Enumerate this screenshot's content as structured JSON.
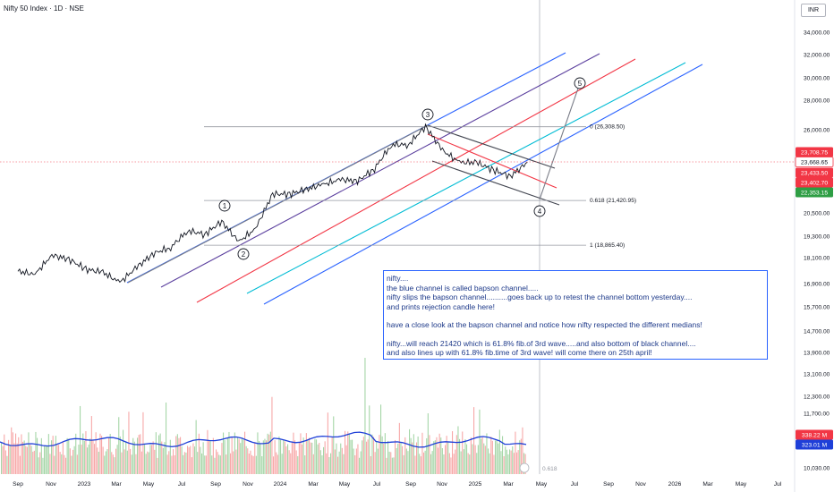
{
  "header": {
    "title": "Nifty 50 Index · 1D · NSE",
    "currency": "INR"
  },
  "colors": {
    "price": "#131722",
    "blue_channel": "#2962ff",
    "purple_channel": "#5b3f9e",
    "red_channel": "#f23645",
    "teal_channel": "#00bcd4",
    "black_channel": "#434651",
    "fib_line": "#9598a1",
    "volume_up": "#a5d6a7",
    "volume_down": "#f7a8a8",
    "volume_ma": "#1e3fd8",
    "current_price_badge": "#f23645",
    "green_badge": "#2e9e44",
    "note_border": "#2962ff",
    "note_text": "#1e3a8a"
  },
  "annotations": {
    "fib_levels": [
      "0 (26,308.50)",
      "0.618 (21,420.95)",
      "1 (18,865.40)"
    ],
    "wave_labels": [
      "1",
      "2",
      "3",
      "4",
      "5"
    ],
    "time_fib_label": "0.618"
  },
  "note": {
    "lines": [
      "nifty....",
      "the blue channel is called bapson channel.....",
      "nifty slips the bapson channel..........goes back up to retest the channel bottom yesterday....",
      "and prints rejection candle here!",
      "",
      "have a close look at the bapson channel and notice how nifty respected the different medians!",
      "",
      "nifty...will reach 21420 which is 61.8% fib.of 3rd wave.....and also bottom of black channel....",
      "and also lines up with 61.8% fib.time of 3rd wave! will come there on 25th april!"
    ]
  },
  "chart_data": {
    "type": "line",
    "title": "Nifty 50 Index · 1D · NSE",
    "x_tick_labels": [
      "Sep",
      "Nov",
      "2023",
      "Mar",
      "May",
      "Jul",
      "Sep",
      "Nov",
      "2024",
      "Mar",
      "May",
      "Jul",
      "Sep",
      "Nov",
      "2025",
      "Mar",
      "May",
      "Jul",
      "Sep",
      "Nov",
      "2026",
      "Mar",
      "May",
      "Jul"
    ],
    "y_tick_labels": [
      "34,000.00",
      "32,000.00",
      "30,000.00",
      "28,000.00",
      "26,000.00",
      "23,708.75",
      "23,668.65",
      "23,433.50",
      "23,402.70",
      "22,353.15",
      "20,500.00",
      "19,300.00",
      "18,100.00",
      "16,900.00",
      "15,700.00",
      "14,700.00",
      "13,900.00",
      "13,100.00",
      "12,300.00",
      "11,700.00",
      "338.22 M",
      "323.01 M",
      "10,030.00"
    ],
    "y_scale": "log",
    "y_ticks": [
      34000,
      32000,
      30000,
      28000,
      26000,
      20500,
      19300,
      18100,
      16900,
      15700,
      14700,
      13900,
      13100,
      12300,
      11700,
      10030
    ],
    "price_badges": [
      {
        "label": "23,708.75",
        "value": 23708.75,
        "color": "#f23645"
      },
      {
        "label": "23,668.65",
        "value": 23668.65,
        "color": "#ffffff"
      },
      {
        "label": "23,433.50",
        "value": 23433.5,
        "color": "#f23645"
      },
      {
        "label": "23,402.70",
        "value": 23402.7,
        "color": "#f23645"
      },
      {
        "label": "22,353.15",
        "value": 22353.15,
        "color": "#2e9e44"
      }
    ],
    "volume_badges": [
      {
        "label": "338.22 M",
        "color": "#f23645"
      },
      {
        "label": "323.01 M",
        "color": "#1e3fd8"
      }
    ],
    "series": [
      {
        "name": "Nifty 50 close",
        "x": [
          "2022-09",
          "2022-10",
          "2022-11",
          "2022-12",
          "2023-01",
          "2023-02",
          "2023-03",
          "2023-04",
          "2023-05",
          "2023-06",
          "2023-07",
          "2023-08",
          "2023-09",
          "2023-10",
          "2023-11",
          "2023-12",
          "2024-01",
          "2024-02",
          "2024-03",
          "2024-04",
          "2024-05",
          "2024-06",
          "2024-07",
          "2024-08",
          "2024-09",
          "2024-10",
          "2024-11",
          "2024-12",
          "2025-01",
          "2025-02",
          "2025-03"
        ],
        "y": [
          17500,
          17350,
          18300,
          18100,
          17600,
          17450,
          16960,
          17700,
          18400,
          18700,
          19600,
          19400,
          20100,
          19000,
          19700,
          21700,
          21700,
          22000,
          22300,
          22600,
          22500,
          23300,
          24900,
          24900,
          26200,
          24500,
          23700,
          23700,
          23200,
          22800,
          23700
        ]
      }
    ],
    "ylim": [
      10030,
      35000
    ],
    "grid": false,
    "legend": "none"
  }
}
